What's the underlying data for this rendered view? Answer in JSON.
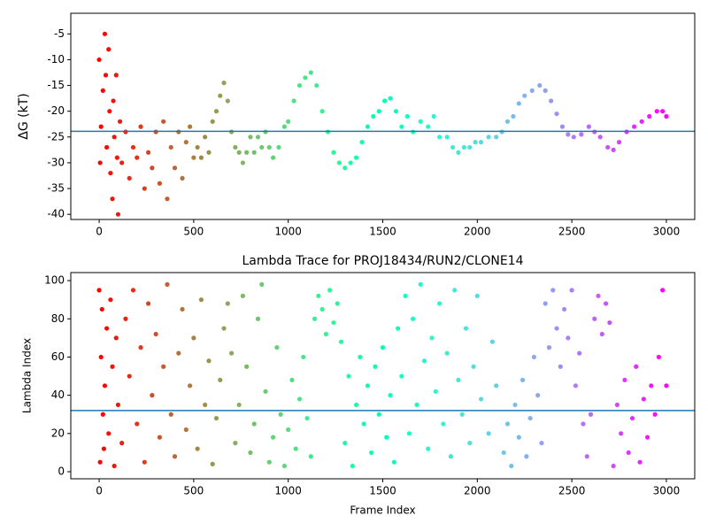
{
  "chart_data": [
    {
      "type": "scatter",
      "ylabel": "ΔG (kT)",
      "colormap": "rainbow_r",
      "xlim": [
        -150,
        3150
      ],
      "ylim": [
        -41,
        -1
      ],
      "xticks": [
        0,
        500,
        1000,
        1500,
        2000,
        2500,
        3000
      ],
      "yticks": [
        -40,
        -35,
        -30,
        -25,
        -20,
        -15,
        -10,
        -5
      ],
      "hline": {
        "value": -23.9,
        "color": "#1f77b4"
      },
      "x": [
        0,
        5,
        10,
        20,
        30,
        35,
        40,
        50,
        55,
        60,
        70,
        75,
        80,
        90,
        95,
        100,
        110,
        120,
        140,
        160,
        180,
        200,
        220,
        240,
        260,
        280,
        300,
        320,
        340,
        360,
        380,
        400,
        420,
        440,
        460,
        480,
        500,
        520,
        540,
        560,
        580,
        600,
        620,
        640,
        660,
        680,
        700,
        720,
        740,
        760,
        780,
        800,
        820,
        840,
        860,
        880,
        900,
        920,
        950,
        980,
        1000,
        1030,
        1060,
        1090,
        1120,
        1150,
        1180,
        1210,
        1240,
        1270,
        1300,
        1330,
        1360,
        1390,
        1420,
        1450,
        1480,
        1510,
        1540,
        1570,
        1600,
        1630,
        1660,
        1700,
        1740,
        1770,
        1800,
        1840,
        1870,
        1900,
        1930,
        1960,
        1990,
        2020,
        2060,
        2100,
        2130,
        2160,
        2190,
        2220,
        2250,
        2290,
        2330,
        2360,
        2390,
        2420,
        2450,
        2480,
        2510,
        2550,
        2590,
        2620,
        2650,
        2690,
        2720,
        2750,
        2790,
        2830,
        2870,
        2910,
        2950,
        2980,
        3000
      ],
      "values": [
        -10,
        -30,
        -23,
        -16,
        -5,
        -13,
        -27,
        -8,
        -20,
        -32,
        -37,
        -18,
        -25,
        -13,
        -29,
        -40,
        -22,
        -30,
        -24,
        -33,
        -27,
        -29,
        -23,
        -35,
        -28,
        -31,
        -24,
        -34,
        -22,
        -37,
        -27,
        -31,
        -24,
        -33,
        -26,
        -23,
        -29,
        -27,
        -29,
        -25,
        -28,
        -22,
        -20,
        -17,
        -14.5,
        -18,
        -24,
        -27,
        -28,
        -30,
        -28,
        -25,
        -28,
        -25,
        -27,
        -24,
        -27,
        -29,
        -27,
        -23,
        -22,
        -18,
        -15,
        -13.5,
        -12.5,
        -15,
        -20,
        -24,
        -28,
        -30,
        -31,
        -30,
        -29,
        -26,
        -23,
        -21,
        -20,
        -18,
        -17.5,
        -20,
        -23,
        -21,
        -24,
        -22,
        -23,
        -21,
        -25,
        -25,
        -27,
        -28,
        -27,
        -27,
        -26,
        -26,
        -25,
        -25,
        -24,
        -22,
        -21,
        -18.5,
        -17,
        -16,
        -15,
        -16,
        -18,
        -20.5,
        -23,
        -24.5,
        -25,
        -24.5,
        -23,
        -24,
        -25,
        -27,
        -27.5,
        -26,
        -24,
        -23,
        -22,
        -21,
        -20,
        -20,
        -21
      ]
    },
    {
      "type": "scatter",
      "title": "Lambda Trace for PROJ18434/RUN2/CLONE14",
      "xlabel": "Frame Index",
      "ylabel": "Lambda Index",
      "colormap": "rainbow_r",
      "xlim": [
        -150,
        3150
      ],
      "ylim": [
        -3.7,
        104.2
      ],
      "xticks": [
        0,
        500,
        1000,
        1500,
        2000,
        2500,
        3000
      ],
      "yticks": [
        0,
        20,
        40,
        60,
        80,
        100
      ],
      "hline": {
        "value": 32,
        "color": "#1f77b4"
      },
      "x": [
        0,
        5,
        10,
        15,
        20,
        25,
        30,
        40,
        50,
        60,
        70,
        80,
        90,
        100,
        120,
        140,
        160,
        180,
        200,
        220,
        240,
        260,
        280,
        300,
        320,
        340,
        360,
        380,
        400,
        420,
        440,
        460,
        480,
        500,
        520,
        540,
        560,
        580,
        600,
        620,
        640,
        660,
        680,
        700,
        720,
        740,
        760,
        780,
        800,
        820,
        840,
        860,
        880,
        900,
        920,
        940,
        960,
        980,
        1000,
        1020,
        1040,
        1060,
        1080,
        1100,
        1120,
        1140,
        1160,
        1180,
        1200,
        1220,
        1240,
        1260,
        1280,
        1300,
        1320,
        1340,
        1360,
        1380,
        1400,
        1420,
        1440,
        1460,
        1480,
        1500,
        1520,
        1540,
        1560,
        1580,
        1600,
        1620,
        1640,
        1660,
        1680,
        1700,
        1720,
        1740,
        1760,
        1780,
        1800,
        1820,
        1840,
        1860,
        1880,
        1900,
        1920,
        1940,
        1960,
        1980,
        2000,
        2020,
        2060,
        2080,
        2100,
        2140,
        2160,
        2180,
        2200,
        2220,
        2240,
        2260,
        2280,
        2300,
        2320,
        2340,
        2360,
        2380,
        2400,
        2420,
        2440,
        2460,
        2480,
        2500,
        2520,
        2540,
        2560,
        2580,
        2600,
        2620,
        2640,
        2660,
        2680,
        2700,
        2720,
        2740,
        2760,
        2780,
        2800,
        2820,
        2840,
        2860,
        2880,
        2900,
        2920,
        2940,
        2960,
        2980,
        3000
      ],
      "values": [
        95,
        5,
        60,
        85,
        30,
        12,
        45,
        75,
        20,
        90,
        55,
        3,
        70,
        35,
        15,
        80,
        50,
        95,
        25,
        65,
        5,
        88,
        40,
        72,
        18,
        55,
        98,
        30,
        8,
        62,
        85,
        22,
        45,
        70,
        12,
        90,
        35,
        58,
        4,
        28,
        48,
        75,
        88,
        62,
        15,
        35,
        92,
        55,
        10,
        25,
        80,
        98,
        42,
        5,
        18,
        65,
        30,
        3,
        22,
        48,
        12,
        38,
        60,
        28,
        8,
        80,
        92,
        85,
        72,
        95,
        78,
        88,
        68,
        15,
        50,
        3,
        35,
        60,
        25,
        45,
        10,
        55,
        30,
        65,
        18,
        40,
        5,
        75,
        50,
        92,
        20,
        80,
        35,
        98,
        58,
        12,
        70,
        42,
        88,
        25,
        62,
        8,
        95,
        48,
        30,
        75,
        15,
        55,
        92,
        38,
        20,
        68,
        45,
        10,
        25,
        3,
        35,
        18,
        48,
        8,
        28,
        60,
        40,
        15,
        88,
        65,
        95,
        75,
        55,
        85,
        70,
        95,
        45,
        62,
        25,
        8,
        30,
        80,
        92,
        72,
        88,
        78,
        3,
        35,
        20,
        48,
        10,
        28,
        55,
        5,
        38,
        18,
        45,
        30,
        60,
        95,
        45
      ]
    }
  ]
}
